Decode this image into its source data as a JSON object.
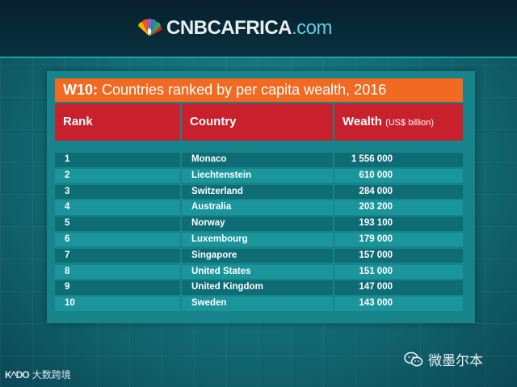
{
  "header": {
    "brand": "CNBCAFRICA",
    "domain": ".com"
  },
  "table": {
    "title_prefix": "W10:",
    "title_rest": " Countries ranked by per capita wealth, 2016",
    "columns": {
      "rank": "Rank",
      "country": "Country",
      "wealth": "Wealth",
      "wealth_unit": "(US$ billion)"
    },
    "rows": [
      {
        "rank": "1",
        "country": "Monaco",
        "wealth": "1 556 000"
      },
      {
        "rank": "2",
        "country": "Liechtenstein",
        "wealth": "610 000"
      },
      {
        "rank": "3",
        "country": "Switzerland",
        "wealth": "284 000"
      },
      {
        "rank": "4",
        "country": "Australia",
        "wealth": "203 200"
      },
      {
        "rank": "5",
        "country": "Norway",
        "wealth": "193 100"
      },
      {
        "rank": "6",
        "country": "Luxembourg",
        "wealth": "179 000"
      },
      {
        "rank": "7",
        "country": "Singapore",
        "wealth": "157 000"
      },
      {
        "rank": "8",
        "country": "United States",
        "wealth": "151 000"
      },
      {
        "rank": "9",
        "country": "United Kingdom",
        "wealth": "147 000"
      },
      {
        "rank": "10",
        "country": "Sweden",
        "wealth": "143 000"
      }
    ]
  },
  "watermarks": {
    "wechat_account": "微墨尔本",
    "corner_mark": "K^DO",
    "corner_text": "大数跨境"
  },
  "icons": {
    "logo": "nbc-peacock-icon",
    "wechat": "wechat-icon"
  }
}
